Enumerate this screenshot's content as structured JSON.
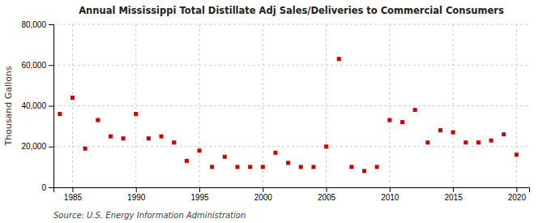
{
  "chart_data": {
    "type": "scatter",
    "title": "Annual Mississippi Total Distillate Adj Sales/Deliveries to Commercial Consumers",
    "ylabel": "Thousand Gallons",
    "source": "Source: U.S. Energy Information Administration",
    "x": [
      1984,
      1985,
      1986,
      1987,
      1988,
      1989,
      1990,
      1991,
      1992,
      1993,
      1994,
      1995,
      1996,
      1997,
      1998,
      1999,
      2000,
      2001,
      2002,
      2003,
      2004,
      2005,
      2006,
      2007,
      2008,
      2009,
      2010,
      2011,
      2012,
      2013,
      2014,
      2015,
      2016,
      2017,
      2018,
      2019,
      2020
    ],
    "values": [
      36000,
      44000,
      19000,
      33000,
      25000,
      24000,
      36000,
      24000,
      25000,
      22000,
      13000,
      18000,
      10000,
      15000,
      10000,
      10000,
      10000,
      17000,
      12000,
      10000,
      10000,
      20000,
      63000,
      10000,
      8000,
      10000,
      33000,
      32000,
      38000,
      22000,
      28000,
      27000,
      22000,
      22000,
      23000,
      26000,
      16000
    ],
    "color": "#cc0000",
    "marker": "square",
    "xlim": [
      1983.5,
      2021
    ],
    "xticks": [
      1985,
      1990,
      1995,
      2000,
      2005,
      2010,
      2015,
      2020
    ],
    "ylim": [
      0,
      80000
    ],
    "yticks": [
      0,
      {
        "value": 20000,
        "label": "20,000"
      },
      {
        "value": 40000,
        "label": "40,000"
      },
      {
        "value": 60000,
        "label": "60,000"
      },
      {
        "value": 80000,
        "label": "80,000"
      }
    ],
    "grid": true
  }
}
